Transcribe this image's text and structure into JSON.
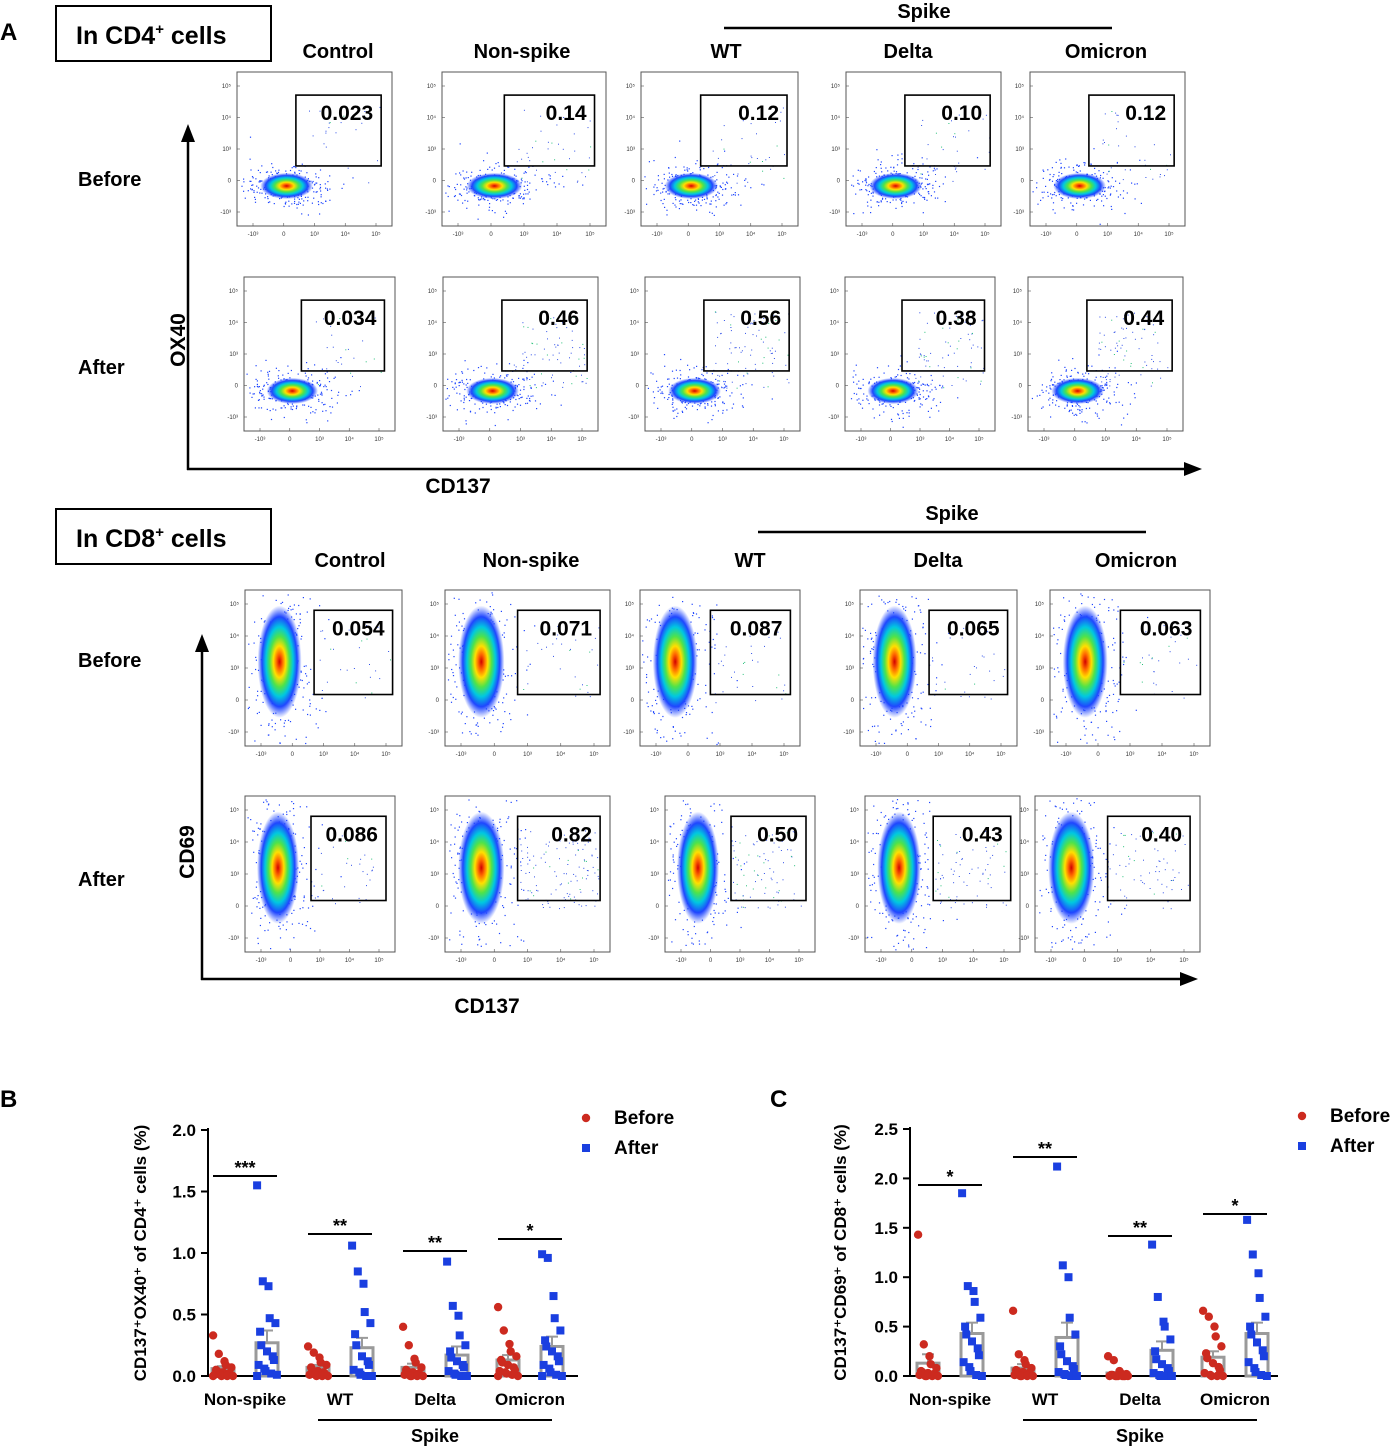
{
  "panel_letters": {
    "a": "A",
    "b": "B",
    "c": "C"
  },
  "cd4": {
    "header": {
      "prefix": "In CD4",
      "sup": "+",
      "suffix": " cells"
    },
    "spike_label": "Spike",
    "columns": [
      "Control",
      "Non-spike",
      "WT",
      "Delta",
      "Omicron"
    ],
    "rows": [
      "Before",
      "After"
    ],
    "y_axis": "OX40",
    "x_axis": "CD137",
    "gate_values": [
      [
        "0.023",
        "0.14",
        "0.12",
        "0.10",
        "0.12"
      ],
      [
        "0.034",
        "0.46",
        "0.56",
        "0.38",
        "0.44"
      ]
    ]
  },
  "cd8": {
    "header": {
      "prefix": "In CD8",
      "sup": "+",
      "suffix": " cells"
    },
    "spike_label": "Spike",
    "columns": [
      "Control",
      "Non-spike",
      "WT",
      "Delta",
      "Omicron"
    ],
    "rows": [
      "Before",
      "After"
    ],
    "y_axis": "CD69",
    "x_axis": "CD137",
    "gate_values": [
      [
        "0.054",
        "0.071",
        "0.087",
        "0.065",
        "0.063"
      ],
      [
        "0.086",
        "0.82",
        "0.50",
        "0.43",
        "0.40"
      ]
    ]
  },
  "tick_labels": {
    "x": [
      "-10³",
      "0",
      "10³",
      "10⁴",
      "10⁵"
    ],
    "y": [
      "10⁵",
      "10⁴",
      "10³",
      "0",
      "-10³"
    ]
  },
  "colors": {
    "before": "#cc2a1f",
    "after": "#1a3fe0",
    "bar": "#9a9a9a"
  },
  "chart_data": [
    {
      "type": "bar",
      "panel": "B",
      "title": "",
      "ylabel": "CD137⁺OX40⁺ of CD4⁺ cells (%)",
      "xlabel": "",
      "ylim": [
        0,
        2.0
      ],
      "yticks": [
        "0.0",
        "0.5",
        "1.0",
        "1.5",
        "2.0"
      ],
      "categories": [
        "Non-spike",
        "WT",
        "Delta",
        "Omicron"
      ],
      "group_bracket": {
        "label": "Spike",
        "from": "WT",
        "to": "Omicron"
      },
      "legend": [
        "Before",
        "After"
      ],
      "legend_position": "top-right",
      "series": [
        {
          "name": "Before",
          "marker": "circle",
          "means": [
            0.06,
            0.07,
            0.07,
            0.13
          ],
          "sem": [
            0.02,
            0.02,
            0.03,
            0.04
          ],
          "points": [
            [
              0.33,
              0.18,
              0.12,
              0.09,
              0.07,
              0.05,
              0.04,
              0.03,
              0.02,
              0.02,
              0.01,
              0.01,
              0.0,
              0.0,
              0.0,
              0.0
            ],
            [
              0.24,
              0.19,
              0.15,
              0.11,
              0.09,
              0.07,
              0.05,
              0.04,
              0.03,
              0.02,
              0.01,
              0.01,
              0.0,
              0.0,
              0.0
            ],
            [
              0.4,
              0.25,
              0.14,
              0.11,
              0.07,
              0.05,
              0.04,
              0.03,
              0.02,
              0.01,
              0.01,
              0.0,
              0.0,
              0.0,
              0.0
            ],
            [
              0.56,
              0.37,
              0.26,
              0.2,
              0.16,
              0.13,
              0.11,
              0.09,
              0.07,
              0.05,
              0.04,
              0.03,
              0.02,
              0.01,
              0.0,
              0.0
            ]
          ]
        },
        {
          "name": "After",
          "marker": "square",
          "means": [
            0.27,
            0.23,
            0.17,
            0.24
          ],
          "sem": [
            0.1,
            0.08,
            0.07,
            0.08
          ],
          "points": [
            [
              1.55,
              0.77,
              0.73,
              0.47,
              0.43,
              0.36,
              0.25,
              0.2,
              0.16,
              0.13,
              0.09,
              0.06,
              0.04,
              0.02,
              0.01,
              0.0
            ],
            [
              1.06,
              0.85,
              0.75,
              0.52,
              0.43,
              0.34,
              0.25,
              0.16,
              0.12,
              0.09,
              0.05,
              0.03,
              0.01,
              0.0,
              0.0
            ],
            [
              0.93,
              0.57,
              0.49,
              0.33,
              0.25,
              0.2,
              0.15,
              0.12,
              0.09,
              0.07,
              0.04,
              0.02,
              0.01,
              0.0,
              0.0
            ],
            [
              0.99,
              0.96,
              0.65,
              0.47,
              0.37,
              0.29,
              0.24,
              0.2,
              0.16,
              0.12,
              0.09,
              0.06,
              0.03,
              0.01,
              0.0,
              0.0
            ]
          ]
        }
      ],
      "significance": [
        {
          "category": "Non-spike",
          "label": "***"
        },
        {
          "category": "WT",
          "label": "**"
        },
        {
          "category": "Delta",
          "label": "**"
        },
        {
          "category": "Omicron",
          "label": "*"
        }
      ]
    },
    {
      "type": "bar",
      "panel": "C",
      "title": "",
      "ylabel": "CD137⁺CD69⁺ of CD8⁺ cells (%)",
      "xlabel": "",
      "ylim": [
        0,
        2.5
      ],
      "yticks": [
        "0.0",
        "0.5",
        "1.0",
        "1.5",
        "2.0",
        "2.5"
      ],
      "categories": [
        "Non-spike",
        "WT",
        "Delta",
        "Omicron"
      ],
      "group_bracket": {
        "label": "Spike",
        "from": "WT",
        "to": "Omicron"
      },
      "legend": [
        "Before",
        "After"
      ],
      "legend_position": "top-right",
      "series": [
        {
          "name": "Before",
          "marker": "circle",
          "means": [
            0.13,
            0.08,
            0.03,
            0.19
          ],
          "sem": [
            0.09,
            0.04,
            0.01,
            0.06
          ],
          "points": [
            [
              1.43,
              0.32,
              0.2,
              0.12,
              0.08,
              0.05,
              0.04,
              0.03,
              0.02,
              0.01,
              0.01,
              0.0,
              0.0,
              0.0,
              0.0
            ],
            [
              0.66,
              0.22,
              0.16,
              0.12,
              0.08,
              0.06,
              0.05,
              0.04,
              0.03,
              0.02,
              0.01,
              0.0,
              0.0,
              0.0,
              0.0
            ],
            [
              0.2,
              0.16,
              0.05,
              0.03,
              0.02,
              0.01,
              0.01,
              0.0,
              0.0,
              0.0,
              0.0,
              0.0,
              0.0,
              0.0,
              0.0
            ],
            [
              0.66,
              0.6,
              0.5,
              0.4,
              0.3,
              0.23,
              0.18,
              0.13,
              0.09,
              0.06,
              0.03,
              0.01,
              0.0,
              0.0,
              0.0
            ]
          ]
        },
        {
          "name": "After",
          "marker": "square",
          "means": [
            0.43,
            0.39,
            0.26,
            0.43
          ],
          "sem": [
            0.11,
            0.15,
            0.09,
            0.11
          ],
          "points": [
            [
              1.85,
              0.91,
              0.86,
              0.75,
              0.59,
              0.5,
              0.42,
              0.35,
              0.28,
              0.21,
              0.14,
              0.09,
              0.05,
              0.01,
              0.0
            ],
            [
              2.12,
              1.12,
              1.0,
              0.59,
              0.42,
              0.3,
              0.22,
              0.15,
              0.1,
              0.07,
              0.04,
              0.02,
              0.01,
              0.0,
              0.0
            ],
            [
              1.33,
              0.8,
              0.55,
              0.5,
              0.37,
              0.25,
              0.17,
              0.12,
              0.08,
              0.05,
              0.03,
              0.01,
              0.0,
              0.0,
              0.0
            ],
            [
              1.58,
              1.23,
              1.04,
              0.79,
              0.6,
              0.5,
              0.42,
              0.34,
              0.26,
              0.2,
              0.14,
              0.08,
              0.04,
              0.01,
              0.0
            ]
          ]
        }
      ],
      "significance": [
        {
          "category": "Non-spike",
          "label": "*"
        },
        {
          "category": "WT",
          "label": "**"
        },
        {
          "category": "Delta",
          "label": "**"
        },
        {
          "category": "Omicron",
          "label": "*"
        }
      ]
    }
  ]
}
